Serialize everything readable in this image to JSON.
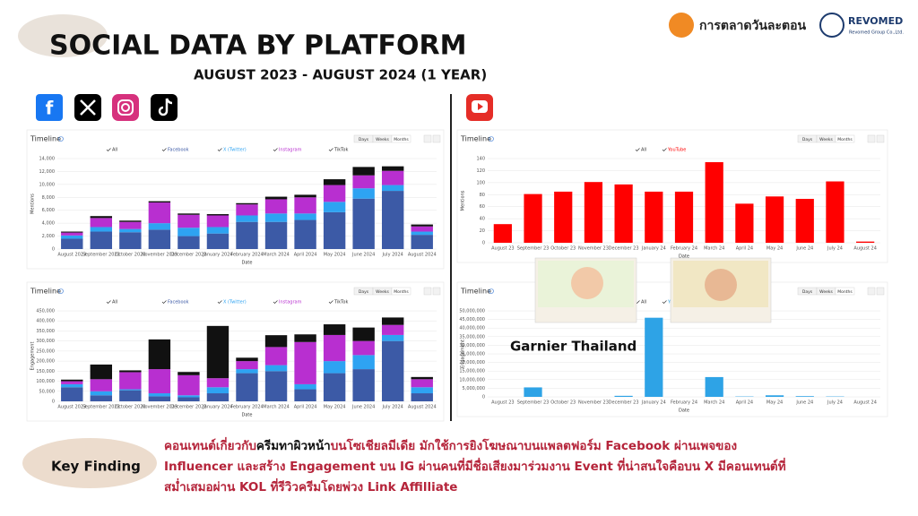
{
  "header": {
    "title": "SOCIAL DATA BY PLATFORM",
    "subtitle": "AUGUST 2023 - AUGUST 2024 (1 YEAR)",
    "logo_1": "การตลาดวันละตอน",
    "logo_2": "REVOMED",
    "logo_2_sub": "Revomed Group Co.,Ltd."
  },
  "key_finding": {
    "label": "Key Finding",
    "line_1": {
      "before": "คอนเทนต์เกี่ยวกับ",
      "bold": "ครีมทาผิวหน้า",
      "after": "บนโซเชียลมีเดีย มักใช้การยิงโฆษณาบนแพลตฟอร์ม Facebook ผ่านเพจของ"
    },
    "line_2": "Influencer และสร้าง Engagement บน IG ผ่านคนที่มีชื่อเสียงมาร่วมงาน Event ที่น่าสนใจคือบน X มีคอนเทนต์ที่",
    "line_3": "สม่ำเสมอผ่าน KOL ที่รีวิวครีมโดยพ่วง Link Affilliate"
  },
  "chart_data": [
    {
      "type": "bar",
      "stacked": true,
      "title": "Timeline",
      "buttons": [
        "Days",
        "Weeks",
        "Months"
      ],
      "legend_all": "All",
      "ylabel": "Mentions",
      "xlabel": "Date",
      "grid": true,
      "categories": [
        "August 2023",
        "September 2023",
        "October 2023",
        "November 2023",
        "December 2023",
        "January 2024",
        "February 2024",
        "March 2024",
        "April 2024",
        "May 2024",
        "June 2024",
        "July 2024",
        "August 2024"
      ],
      "series": [
        {
          "name": "Facebook",
          "color": "#3c5aa6",
          "values": [
            1600,
            2700,
            2600,
            3000,
            2000,
            2400,
            4200,
            4200,
            4500,
            5700,
            7800,
            9000,
            2200
          ]
        },
        {
          "name": "X (Twitter)",
          "color": "#2ea3f2",
          "values": [
            500,
            700,
            500,
            1000,
            1300,
            1000,
            1000,
            1300,
            1000,
            1600,
            1600,
            900,
            500
          ]
        },
        {
          "name": "Instagram",
          "color": "#b82fd0",
          "values": [
            450,
            1400,
            1100,
            3200,
            2000,
            1800,
            1700,
            2200,
            2500,
            2600,
            2000,
            2200,
            800
          ]
        },
        {
          "name": "TikTok",
          "color": "#111111",
          "values": [
            150,
            300,
            200,
            200,
            200,
            200,
            200,
            400,
            400,
            900,
            1300,
            700,
            300
          ]
        }
      ],
      "ylim": [
        0,
        14000
      ],
      "yticks": [
        0,
        {
          "value": 2000,
          "label": "2,000"
        },
        {
          "value": 4000,
          "label": "4,000"
        },
        {
          "value": 6000,
          "label": "6,000"
        },
        {
          "value": 8000,
          "label": "8,000"
        },
        {
          "value": 10000,
          "label": "10,000"
        },
        {
          "value": 12000,
          "label": "12,000"
        },
        {
          "value": 14000,
          "label": "14,000"
        }
      ]
    },
    {
      "type": "bar",
      "stacked": true,
      "title": "Timeline",
      "buttons": [
        "Days",
        "Weeks",
        "Months"
      ],
      "legend_all": "All",
      "ylabel": "Engagement",
      "xlabel": "Date",
      "grid": true,
      "categories": [
        "August 2023",
        "September 2023",
        "October 2023",
        "November 2023",
        "December 2023",
        "January 2024",
        "February 2024",
        "March 2024",
        "April 2024",
        "May 2024",
        "June 2024",
        "July 2024",
        "August 2024"
      ],
      "series": [
        {
          "name": "Facebook",
          "color": "#3c5aa6",
          "values": [
            70000,
            30000,
            55000,
            25000,
            20000,
            40000,
            140000,
            150000,
            60000,
            140000,
            160000,
            300000,
            40000
          ]
        },
        {
          "name": "X (Twitter)",
          "color": "#2ea3f2",
          "values": [
            15000,
            20000,
            5000,
            15000,
            10000,
            30000,
            20000,
            30000,
            25000,
            60000,
            70000,
            30000,
            30000
          ]
        },
        {
          "name": "Instagram",
          "color": "#b82fd0",
          "values": [
            15000,
            60000,
            85000,
            120000,
            100000,
            45000,
            40000,
            90000,
            210000,
            130000,
            70000,
            50000,
            40000
          ]
        },
        {
          "name": "TikTok",
          "color": "#111111",
          "values": [
            8000,
            73000,
            9000,
            148000,
            16000,
            260000,
            17000,
            59000,
            38000,
            53000,
            67000,
            37000,
            11000
          ]
        }
      ],
      "ylim": [
        0,
        450000
      ],
      "yticks": [
        0,
        {
          "value": 50000,
          "label": "50,000"
        },
        {
          "value": 100000,
          "label": "100,000"
        },
        {
          "value": 150000,
          "label": "150,000"
        },
        {
          "value": 200000,
          "label": "200,000"
        },
        {
          "value": 250000,
          "label": "250,000"
        },
        {
          "value": 300000,
          "label": "300,000"
        },
        {
          "value": 350000,
          "label": "350,000"
        },
        {
          "value": 400000,
          "label": "400,000"
        },
        {
          "value": 450000,
          "label": "450,000"
        }
      ]
    },
    {
      "type": "bar",
      "stacked": false,
      "title": "Timeline",
      "buttons": [
        "Days",
        "Weeks",
        "Months"
      ],
      "legend_all": "All",
      "ylabel": "Mentions",
      "xlabel": "Date",
      "grid": true,
      "categories": [
        "August 23",
        "September 23",
        "October 23",
        "November 23",
        "December 23",
        "January 24",
        "February 24",
        "March 24",
        "April 24",
        "May 24",
        "June 24",
        "July 24",
        "August 24"
      ],
      "series": [
        {
          "name": "YouTube",
          "color": "#ff0000",
          "values": [
            31,
            81,
            85,
            101,
            97,
            85,
            85,
            134,
            65,
            77,
            73,
            102,
            2
          ]
        }
      ],
      "ylim": [
        0,
        140
      ],
      "yticks": [
        0,
        20,
        40,
        60,
        80,
        100,
        120,
        140
      ]
    },
    {
      "type": "bar",
      "stacked": false,
      "title": "Timeline",
      "buttons": [
        "Days",
        "Weeks",
        "Months"
      ],
      "legend_all": "All",
      "ylabel": "Engagement",
      "xlabel": "Date",
      "grid": true,
      "annotation": "Garnier Thailand",
      "categories": [
        "August 23",
        "September 23",
        "October 23",
        "November 23",
        "December 23",
        "January 24",
        "February 24",
        "March 24",
        "April 24",
        "May 24",
        "June 24",
        "July 24",
        "August 24"
      ],
      "series": [
        {
          "name": "YouTube",
          "color": "#2ea3e6",
          "values": [
            0,
            5500000,
            0,
            0,
            600000,
            46000000,
            0,
            11500000,
            200000,
            900000,
            400000,
            200000,
            0
          ]
        }
      ],
      "ylim": [
        0,
        50000000
      ],
      "yticks": [
        0,
        {
          "value": 5000000,
          "label": "5,000,000"
        },
        {
          "value": 10000000,
          "label": "10,000,000"
        },
        {
          "value": 15000000,
          "label": "15,000,000"
        },
        {
          "value": 20000000,
          "label": "20,000,000"
        },
        {
          "value": 25000000,
          "label": "25,000,000"
        },
        {
          "value": 30000000,
          "label": "30,000,000"
        },
        {
          "value": 35000000,
          "label": "35,000,000"
        },
        {
          "value": 40000000,
          "label": "40,000,000"
        },
        {
          "value": 45000000,
          "label": "45,000,000"
        },
        {
          "value": 50000000,
          "label": "50,000,000"
        }
      ]
    }
  ]
}
